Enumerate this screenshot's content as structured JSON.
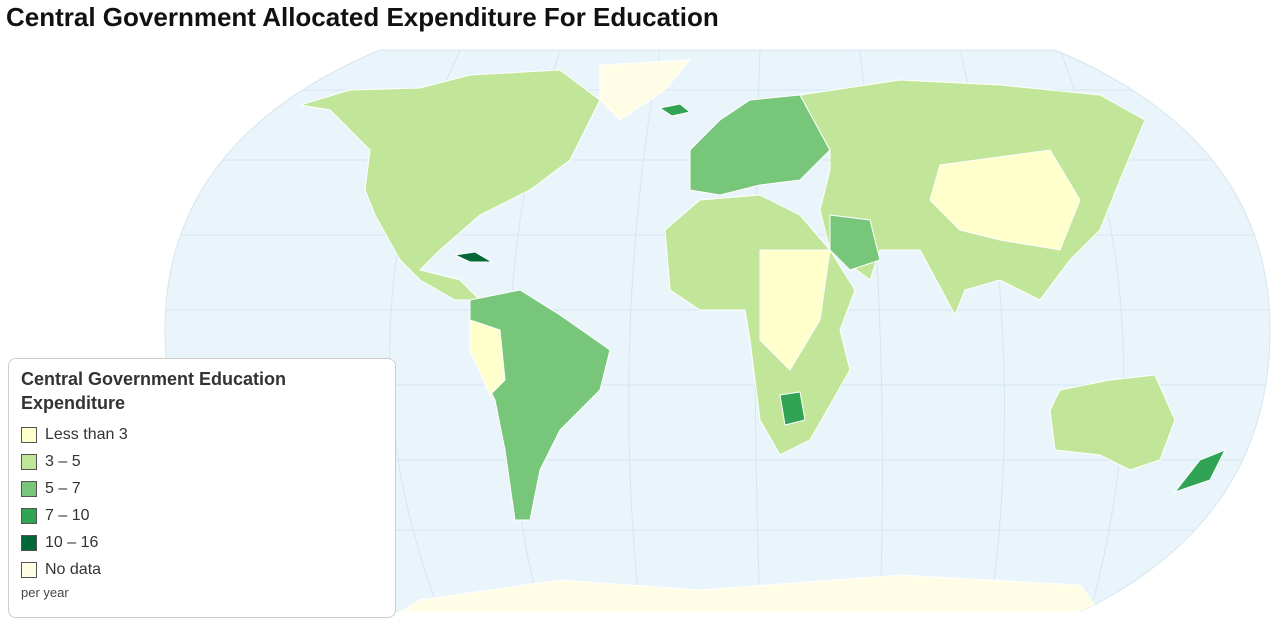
{
  "title": "Central Government Allocated Expenditure For Education",
  "legend": {
    "title": "Central Government Education Expenditure",
    "items": [
      {
        "label": "Less than 3",
        "color": "#ffffcc"
      },
      {
        "label": "3 – 5",
        "color": "#c2e699"
      },
      {
        "label": "5 – 7",
        "color": "#78c679"
      },
      {
        "label": "7 – 10",
        "color": "#31a354"
      },
      {
        "label": "10 – 16",
        "color": "#006837"
      },
      {
        "label": "No data",
        "color": "#fffde6"
      }
    ],
    "note": "per year"
  }
}
